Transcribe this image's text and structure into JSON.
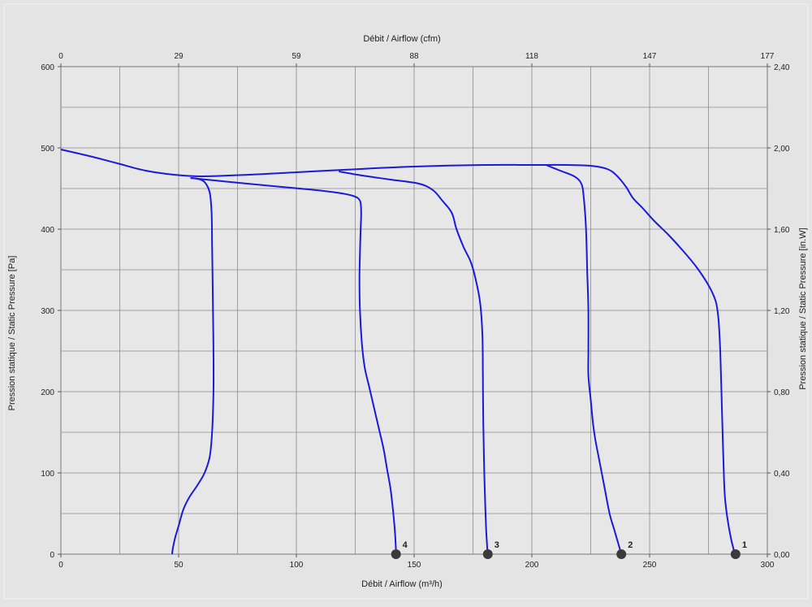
{
  "chart_data": {
    "type": "line",
    "xlabel_bottom": "Débit / Airflow (m³/h)",
    "xlabel_top": "Débit / Airflow (cfm)",
    "ylabel_left": "Pression statique / Static Pressure [Pa]",
    "ylabel_right": "Pression statique / Static Pressure [in.W]",
    "xlim": [
      0,
      300
    ],
    "ylim": [
      0,
      600
    ],
    "x_ticks_bottom": [
      "0",
      "50",
      "100",
      "150",
      "200",
      "250",
      "300"
    ],
    "x_ticks_top": [
      "0",
      "29",
      "59",
      "88",
      "118",
      "147",
      "177"
    ],
    "y_ticks_left": [
      "0",
      "100",
      "200",
      "300",
      "400",
      "500",
      "600"
    ],
    "y_ticks_right": [
      "0,00",
      "0,40",
      "0,80",
      "1,20",
      "1,60",
      "2,00",
      "2,40"
    ],
    "grid": true,
    "line_color": "#1a1adb",
    "marker_color": "#3a3a3a",
    "series": [
      {
        "name": "1",
        "points": [
          [
            0,
            498
          ],
          [
            12,
            490
          ],
          [
            24,
            481
          ],
          [
            36,
            472
          ],
          [
            48,
            467
          ],
          [
            60,
            465
          ],
          [
            80,
            467
          ],
          [
            100,
            470
          ],
          [
            120,
            473
          ],
          [
            150,
            477
          ],
          [
            180,
            479
          ],
          [
            200,
            479
          ],
          [
            215,
            479
          ],
          [
            225,
            478
          ],
          [
            232,
            474
          ],
          [
            236,
            466
          ],
          [
            240,
            452
          ],
          [
            243,
            438
          ],
          [
            247,
            426
          ],
          [
            252,
            410
          ],
          [
            258,
            393
          ],
          [
            264,
            374
          ],
          [
            270,
            353
          ],
          [
            275,
            331
          ],
          [
            278,
            312
          ],
          [
            279,
            296
          ],
          [
            279.5,
            280
          ],
          [
            280,
            250
          ],
          [
            280.5,
            200
          ],
          [
            281,
            150
          ],
          [
            281.5,
            100
          ],
          [
            282,
            70
          ],
          [
            283,
            45
          ],
          [
            284.5,
            20
          ],
          [
            285.5,
            8
          ],
          [
            286,
            2
          ],
          [
            286.5,
            0
          ]
        ],
        "endpoint": [
          286.5,
          0
        ]
      },
      {
        "name": "2",
        "points": [
          [
            206,
            479
          ],
          [
            212,
            472
          ],
          [
            218,
            465
          ],
          [
            221,
            456
          ],
          [
            222,
            440
          ],
          [
            223,
            400
          ],
          [
            223.5,
            350
          ],
          [
            224,
            300
          ],
          [
            224,
            250
          ],
          [
            224,
            220
          ],
          [
            225,
            190
          ],
          [
            226,
            160
          ],
          [
            227,
            140
          ],
          [
            229,
            110
          ],
          [
            231,
            80
          ],
          [
            233,
            50
          ],
          [
            235,
            30
          ],
          [
            236.5,
            15
          ],
          [
            237.5,
            5
          ],
          [
            238,
            0
          ]
        ],
        "endpoint": [
          238,
          0
        ]
      },
      {
        "name": "3",
        "points": [
          [
            118,
            471
          ],
          [
            128,
            466
          ],
          [
            140,
            461
          ],
          [
            152,
            456
          ],
          [
            158,
            448
          ],
          [
            162,
            435
          ],
          [
            166,
            420
          ],
          [
            168,
            400
          ],
          [
            171,
            378
          ],
          [
            174,
            360
          ],
          [
            176,
            340
          ],
          [
            178,
            310
          ],
          [
            179,
            270
          ],
          [
            179.2,
            220
          ],
          [
            179.3,
            180
          ],
          [
            179.5,
            140
          ],
          [
            179.8,
            100
          ],
          [
            180.2,
            60
          ],
          [
            180.6,
            30
          ],
          [
            181,
            10
          ],
          [
            181.3,
            0
          ]
        ],
        "endpoint": [
          181.3,
          0
        ]
      },
      {
        "name": "4",
        "points": [
          [
            55,
            463
          ],
          [
            72,
            458
          ],
          [
            90,
            453
          ],
          [
            105,
            449
          ],
          [
            117,
            445
          ],
          [
            124,
            441
          ],
          [
            127,
            435
          ],
          [
            127.5,
            420
          ],
          [
            127.3,
            400
          ],
          [
            127,
            370
          ],
          [
            126.8,
            340
          ],
          [
            127,
            300
          ],
          [
            127.8,
            260
          ],
          [
            129,
            230
          ],
          [
            131,
            205
          ],
          [
            133,
            180
          ],
          [
            135,
            155
          ],
          [
            137,
            130
          ],
          [
            138.5,
            105
          ],
          [
            140,
            80
          ],
          [
            141,
            55
          ],
          [
            141.8,
            30
          ],
          [
            142.2,
            10
          ],
          [
            142.3,
            0
          ]
        ],
        "endpoint": [
          142.3,
          0
        ]
      },
      {
        "name": "",
        "points": [
          [
            55,
            463
          ],
          [
            58,
            462
          ],
          [
            61,
            458
          ],
          [
            63.2,
            445
          ],
          [
            64,
            420
          ],
          [
            64.2,
            380
          ],
          [
            64.4,
            340
          ],
          [
            64.6,
            300
          ],
          [
            64.8,
            250
          ],
          [
            64.8,
            200
          ],
          [
            64.2,
            150
          ],
          [
            63.2,
            120
          ],
          [
            61,
            100
          ],
          [
            58,
            85
          ],
          [
            54.5,
            70
          ],
          [
            52,
            55
          ],
          [
            50,
            35
          ],
          [
            48.5,
            20
          ],
          [
            47.6,
            8
          ],
          [
            47.2,
            0
          ]
        ]
      }
    ]
  }
}
